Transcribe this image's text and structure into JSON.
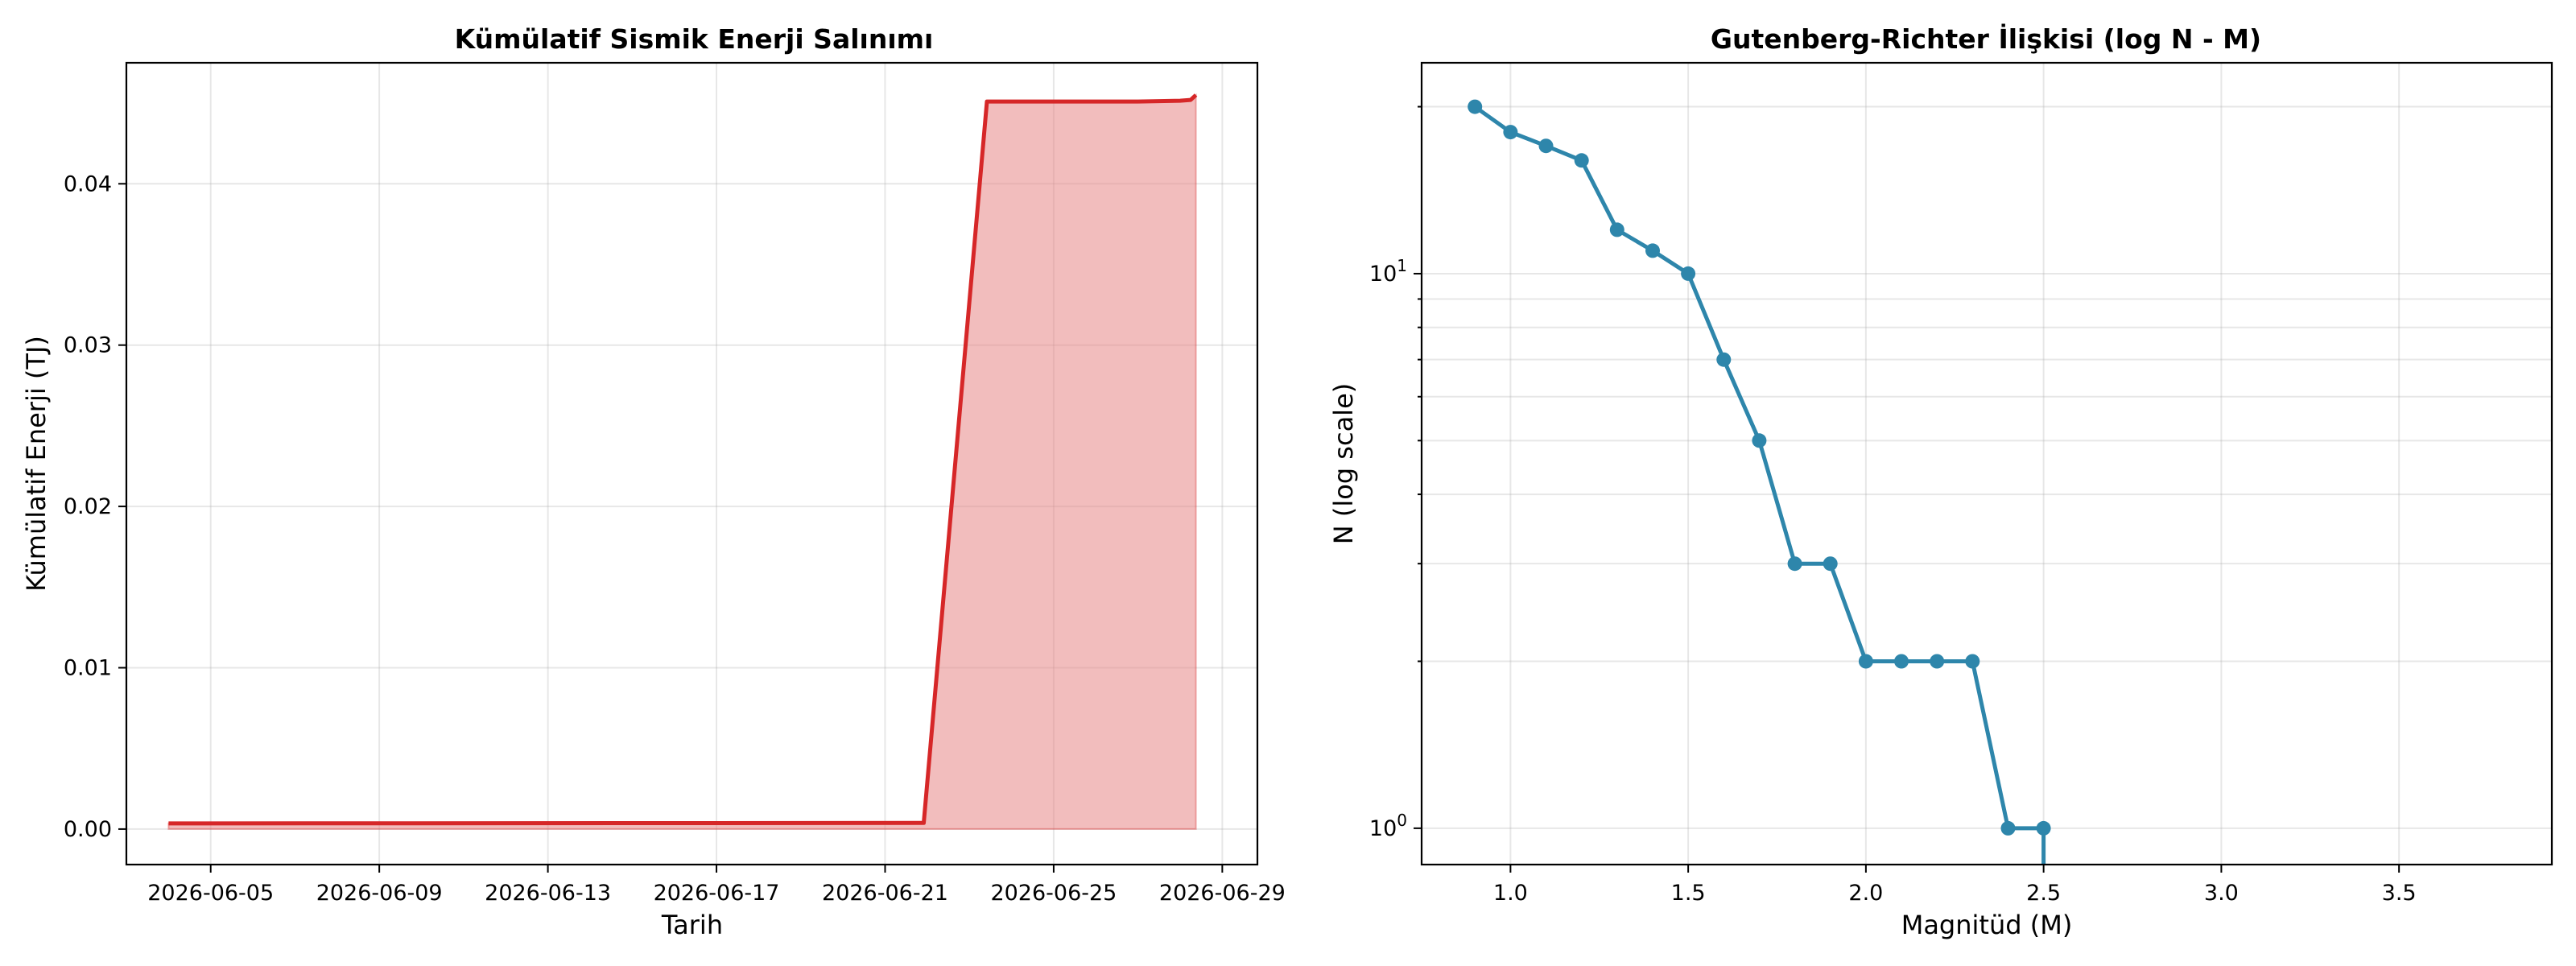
{
  "chart_data": [
    {
      "type": "area",
      "title": "Kümülatif Sismik Enerji Salınımı",
      "xlabel": "Tarih",
      "ylabel": "Kümülatif Enerji (TJ)",
      "xlim": [
        "2026-06-03",
        "2026-06-29T20:00"
      ],
      "ylim": [
        -0.0022,
        0.0475
      ],
      "x_ticks": [
        "2026-06-05",
        "2026-06-09",
        "2026-06-13",
        "2026-06-17",
        "2026-06-21",
        "2026-06-25",
        "2026-06-29"
      ],
      "y_ticks": [
        "0.00",
        "0.01",
        "0.02",
        "0.03",
        "0.04"
      ],
      "y_tick_values": [
        0,
        0.01,
        0.02,
        0.03,
        0.04
      ],
      "grid": true,
      "color": "#d62728",
      "fill_color": "#e88686",
      "series": [
        {
          "x": [
            "2026-06-04",
            "2026-06-21T22:00",
            "2026-06-23T10:00",
            "2026-06-27",
            "2026-06-28",
            "2026-06-28T06:00",
            "2026-06-28T09:00"
          ],
          "values": [
            0.00035,
            0.00038,
            0.0451,
            0.0451,
            0.04515,
            0.0452,
            0.0455
          ]
        }
      ]
    },
    {
      "type": "line",
      "title": "Gutenberg-Richter İlişkisi (log N - M)",
      "xlabel": "Magnitüd (M)",
      "ylabel": "N (log scale)",
      "xlim": [
        0.75,
        3.93
      ],
      "ylim": [
        0.86,
        24
      ],
      "yscale": "log",
      "x_ticks": [
        "1.0",
        "1.5",
        "2.0",
        "2.5",
        "3.0",
        "3.5"
      ],
      "x_tick_values": [
        1.0,
        1.5,
        2.0,
        2.5,
        3.0,
        3.5
      ],
      "y_ticks": [
        "10⁰",
        "10¹"
      ],
      "grid": true,
      "color": "#2e86ab",
      "series": [
        {
          "x": [
            0.9,
            1.0,
            1.1,
            1.2,
            1.3,
            1.4,
            1.5,
            1.6,
            1.7,
            1.8,
            1.9,
            2.0,
            2.1,
            2.2,
            2.3,
            2.4,
            2.5
          ],
          "values": [
            20,
            18,
            17,
            16,
            12,
            11,
            10,
            7,
            5,
            3,
            3,
            2,
            2,
            2,
            2,
            1,
            1
          ]
        }
      ]
    }
  ]
}
